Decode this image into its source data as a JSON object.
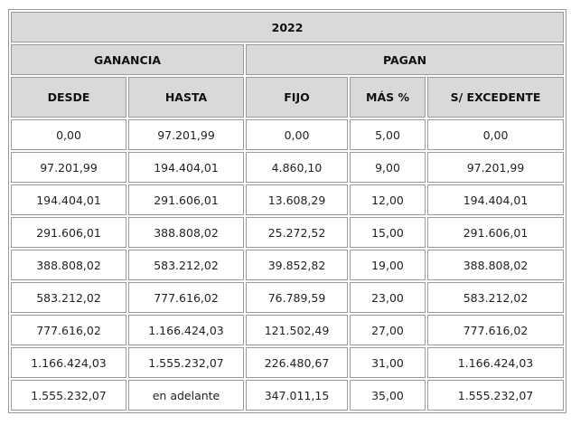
{
  "table": {
    "year": "2022",
    "groups": [
      "GANANCIA",
      "PAGAN"
    ],
    "columns": [
      "DESDE",
      "HASTA",
      "FIJO",
      "MÁS %",
      "S/ EXCEDENTE"
    ],
    "rows": [
      [
        "0,00",
        "97.201,99",
        "0,00",
        "5,00",
        "0,00"
      ],
      [
        "97.201,99",
        "194.404,01",
        "4.860,10",
        "9,00",
        "97.201,99"
      ],
      [
        "194.404,01",
        "291.606,01",
        "13.608,29",
        "12,00",
        "194.404,01"
      ],
      [
        "291.606,01",
        "388.808,02",
        "25.272,52",
        "15,00",
        "291.606,01"
      ],
      [
        "388.808,02",
        "583.212,02",
        "39.852,82",
        "19,00",
        "388.808,02"
      ],
      [
        "583.212,02",
        "777.616,02",
        "76.789,59",
        "23,00",
        "583.212,02"
      ],
      [
        "777.616,02",
        "1.166.424,03",
        "121.502,49",
        "27,00",
        "777.616,02"
      ],
      [
        "1.166.424,03",
        "1.555.232,07",
        "226.480,67",
        "31,00",
        "1.166.424,03"
      ],
      [
        "1.555.232,07",
        "en adelante",
        "347.011,15",
        "35,00",
        "1.555.232,07"
      ]
    ]
  }
}
